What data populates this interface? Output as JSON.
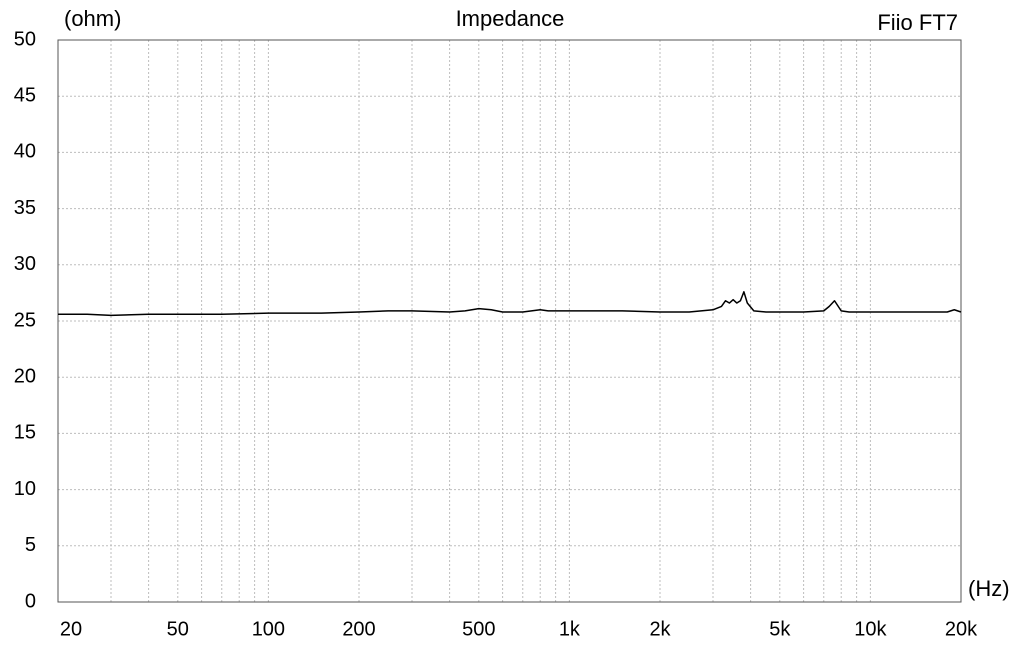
{
  "chart_data": {
    "type": "line",
    "title": "Impedance",
    "annotation": "Fiio FT7",
    "y_label": "(ohm)",
    "x_label": "(Hz)",
    "log_x": true,
    "grid": true,
    "xlim": [
      20,
      20000
    ],
    "ylim": [
      0,
      50
    ],
    "yticks": [
      0,
      5,
      10,
      15,
      20,
      25,
      30,
      35,
      40,
      45,
      50
    ],
    "xticks": [
      20,
      50,
      100,
      200,
      500,
      {
        "value": 1000,
        "label": "1k"
      },
      {
        "value": 2000,
        "label": "2k"
      },
      {
        "value": 5000,
        "label": "5k"
      },
      {
        "value": 10000,
        "label": "10k"
      },
      {
        "value": 20000,
        "label": "20k"
      }
    ],
    "xgrid_minor": [
      30,
      40,
      60,
      70,
      80,
      90,
      300,
      400,
      600,
      700,
      800,
      900,
      3000,
      4000,
      6000,
      7000,
      8000,
      9000
    ],
    "x": [
      20,
      25,
      30,
      40,
      50,
      70,
      100,
      150,
      200,
      250,
      300,
      400,
      450,
      500,
      550,
      600,
      700,
      800,
      850,
      1000,
      1500,
      2000,
      2500,
      3000,
      3200,
      3300,
      3400,
      3500,
      3600,
      3700,
      3800,
      3900,
      4100,
      4500,
      5000,
      6000,
      7000,
      7300,
      7600,
      8000,
      8500,
      10000,
      15000,
      18000,
      19000,
      20000
    ],
    "series": [
      {
        "name": "Fiio FT7",
        "color": "#000000",
        "values": [
          25.6,
          25.6,
          25.5,
          25.6,
          25.6,
          25.6,
          25.7,
          25.7,
          25.8,
          25.9,
          25.9,
          25.8,
          25.9,
          26.1,
          26.0,
          25.8,
          25.8,
          26.0,
          25.9,
          25.9,
          25.9,
          25.8,
          25.8,
          26.0,
          26.3,
          26.8,
          26.6,
          26.9,
          26.6,
          26.8,
          27.6,
          26.6,
          25.9,
          25.8,
          25.8,
          25.8,
          25.9,
          26.3,
          26.8,
          25.9,
          25.8,
          25.8,
          25.8,
          25.8,
          26.0,
          25.8
        ]
      }
    ]
  }
}
